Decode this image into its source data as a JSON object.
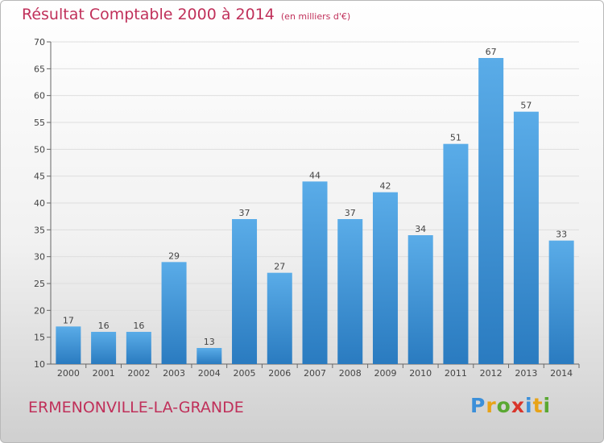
{
  "title": "Résultat Comptable 2000 à 2014",
  "unit": "(en milliers d'€)",
  "commune": "ERMENONVILLE-LA-GRANDE",
  "logo": {
    "letters": [
      "P",
      "r",
      "o",
      "x",
      "i",
      "t",
      "i"
    ],
    "colors": [
      "#3b8fd9",
      "#e8a317",
      "#5aa832",
      "#d9352b",
      "#3b8fd9",
      "#e8a317",
      "#5aa832"
    ]
  },
  "colors": {
    "bar_top": "#5aace8",
    "bar_bottom": "#2a7bc0",
    "title": "#c0305a"
  },
  "chart_data": {
    "type": "bar",
    "categories": [
      "2000",
      "2001",
      "2002",
      "2003",
      "2004",
      "2005",
      "2006",
      "2007",
      "2008",
      "2009",
      "2010",
      "2011",
      "2012",
      "2013",
      "2014"
    ],
    "values": [
      17,
      16,
      16,
      29,
      13,
      37,
      27,
      44,
      37,
      42,
      34,
      51,
      67,
      57,
      33
    ],
    "ylim": [
      10,
      70
    ],
    "yticks": [
      10,
      15,
      20,
      25,
      30,
      35,
      40,
      45,
      50,
      55,
      60,
      65,
      70
    ],
    "grid": true
  }
}
